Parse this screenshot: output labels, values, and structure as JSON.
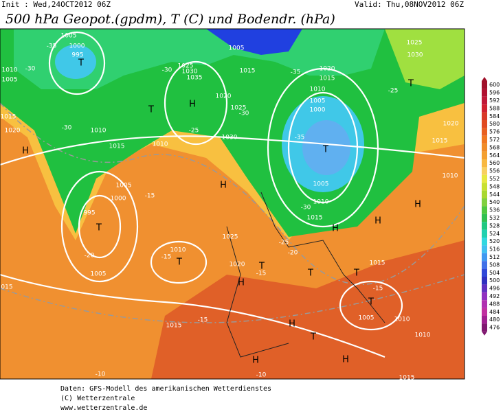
{
  "header": {
    "init": "Init : Wed,24OCT2012 06Z",
    "valid": "Valid: Thu,08NOV2012 06Z",
    "title": "500 hPa Geopot.(gpdm), T (C) und Bodendr. (hPa)"
  },
  "map_labels": [
    "1005",
    "1000",
    "995",
    "T",
    "-35",
    "1010",
    "1005",
    "-30",
    "1015",
    "1020",
    "H",
    "-30",
    "1010",
    "1015",
    "1010",
    "1025",
    "1030",
    "1035",
    "H",
    "T",
    "-30",
    "-25",
    "1030",
    "1020",
    "1025",
    "-30",
    "1005",
    "1015",
    "-35",
    "1020",
    "1015",
    "1010",
    "1005",
    "1000",
    "T",
    "-35",
    "1005",
    "1010",
    "-30",
    "1015",
    "H",
    "H",
    "H",
    "-25",
    "T",
    "1030",
    "1025",
    "1015",
    "1020",
    "1010",
    "1005",
    "1000",
    "995",
    "T",
    "-15",
    "-20",
    "1005",
    "1010",
    "T",
    "-15",
    "1025",
    "H",
    "1020",
    "T",
    "H",
    "-15",
    "-20",
    "-25",
    "T",
    "1015",
    "T",
    "-15",
    "T",
    "1005",
    "1010",
    "1010",
    "H",
    "T",
    "H",
    "H",
    "-15",
    "1015",
    "015",
    "-10",
    "-10",
    "1015"
  ],
  "colorbar": {
    "levels": [
      600,
      596,
      592,
      588,
      584,
      580,
      576,
      572,
      568,
      564,
      560,
      556,
      552,
      548,
      544,
      540,
      536,
      532,
      528,
      524,
      520,
      516,
      512,
      508,
      504,
      500,
      496,
      492,
      488,
      484,
      480,
      476
    ],
    "colors": [
      "#a0102a",
      "#b01030",
      "#c01838",
      "#d02030",
      "#d83828",
      "#e04a20",
      "#e86020",
      "#f07820",
      "#f08c28",
      "#f4a030",
      "#f8b840",
      "#f8d060",
      "#e8e840",
      "#c8e030",
      "#a8d830",
      "#80d040",
      "#50c840",
      "#30c050",
      "#20c880",
      "#20d0b0",
      "#30d8e0",
      "#40c0f0",
      "#4098f0",
      "#4070e8",
      "#3048d8",
      "#3030c0",
      "#6030c0",
      "#9030c0",
      "#b030b0",
      "#c030a0",
      "#a02090",
      "#801870"
    ]
  },
  "footer": [
    "Daten: GFS-Modell des amerikanischen Wetterdienstes",
    "(C) Wetterzentrale",
    "www.wetterzentrale.de"
  ]
}
